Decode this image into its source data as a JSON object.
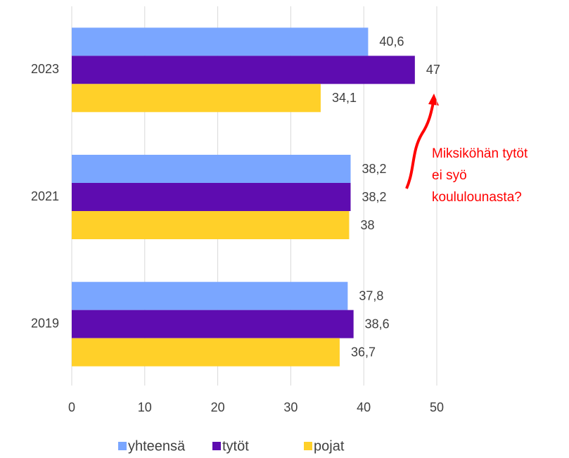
{
  "chart_data": {
    "type": "hbar",
    "categories": [
      "2023",
      "2021",
      "2019"
    ],
    "series": [
      {
        "name": "yhteensä",
        "color": "#7aa6ff",
        "values": [
          40.6,
          38.2,
          37.8
        ],
        "value_labels": [
          "40,6",
          "38,2",
          "37,8"
        ]
      },
      {
        "name": "tytöt",
        "color": "#5e0cb0",
        "values": [
          47,
          38.2,
          38.6
        ],
        "value_labels": [
          "47",
          "38,2",
          "38,6"
        ]
      },
      {
        "name": "pojat",
        "color": "#ffd029",
        "values": [
          34.1,
          38,
          36.7
        ],
        "value_labels": [
          "34,1",
          "38",
          "36,7"
        ]
      }
    ],
    "xlim": [
      0,
      50
    ],
    "xticks": [
      0,
      10,
      20,
      30,
      40,
      50
    ],
    "grid": true,
    "legend": "bottom",
    "annotation": [
      "Miksiköhän tytöt",
      "ei syö",
      "koululounasta?"
    ],
    "annotation_color": "#ff0000"
  }
}
